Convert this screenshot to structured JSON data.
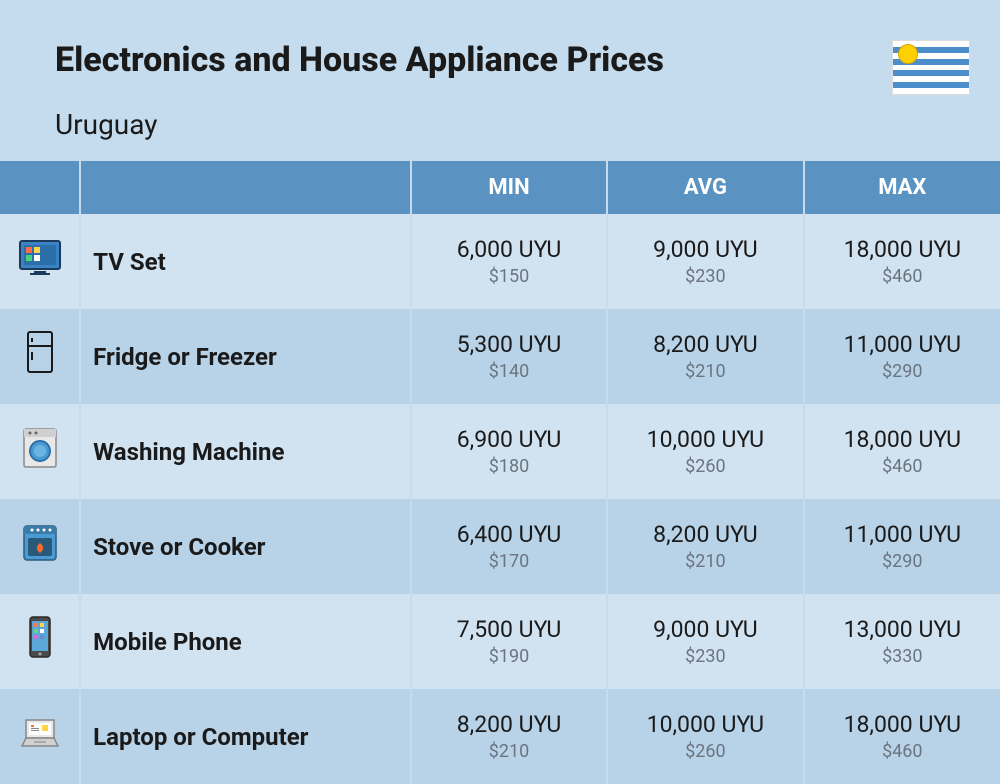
{
  "header": {
    "title": "Electronics and House Appliance Prices",
    "country": "Uruguay"
  },
  "columns": {
    "min": "MIN",
    "avg": "AVG",
    "max": "MAX"
  },
  "currency_local": "UYU",
  "currency_usd_prefix": "$",
  "rows": [
    {
      "icon": "tv",
      "name": "TV Set",
      "min_uyu": "6,000 UYU",
      "min_usd": "$150",
      "avg_uyu": "9,000 UYU",
      "avg_usd": "$230",
      "max_uyu": "18,000 UYU",
      "max_usd": "$460"
    },
    {
      "icon": "fridge",
      "name": "Fridge or Freezer",
      "min_uyu": "5,300 UYU",
      "min_usd": "$140",
      "avg_uyu": "8,200 UYU",
      "avg_usd": "$210",
      "max_uyu": "11,000 UYU",
      "max_usd": "$290"
    },
    {
      "icon": "washer",
      "name": "Washing Machine",
      "min_uyu": "6,900 UYU",
      "min_usd": "$180",
      "avg_uyu": "10,000 UYU",
      "avg_usd": "$260",
      "max_uyu": "18,000 UYU",
      "max_usd": "$460"
    },
    {
      "icon": "stove",
      "name": "Stove or Cooker",
      "min_uyu": "6,400 UYU",
      "min_usd": "$170",
      "avg_uyu": "8,200 UYU",
      "avg_usd": "$210",
      "max_uyu": "11,000 UYU",
      "max_usd": "$290"
    },
    {
      "icon": "phone",
      "name": "Mobile Phone",
      "min_uyu": "7,500 UYU",
      "min_usd": "$190",
      "avg_uyu": "9,000 UYU",
      "avg_usd": "$230",
      "max_uyu": "13,000 UYU",
      "max_usd": "$330"
    },
    {
      "icon": "laptop",
      "name": "Laptop or Computer",
      "min_uyu": "8,200 UYU",
      "min_usd": "$210",
      "avg_uyu": "10,000 UYU",
      "avg_usd": "$260",
      "max_uyu": "18,000 UYU",
      "max_usd": "$460"
    }
  ],
  "colors": {
    "page_bg": "#c5dcee",
    "header_bg": "#5a93c1",
    "header_text": "#ffffff",
    "row_odd": "#d1e2f0",
    "row_even": "#b8d3e8",
    "text_primary": "#1a1a1a",
    "text_secondary": "#6b7580"
  }
}
